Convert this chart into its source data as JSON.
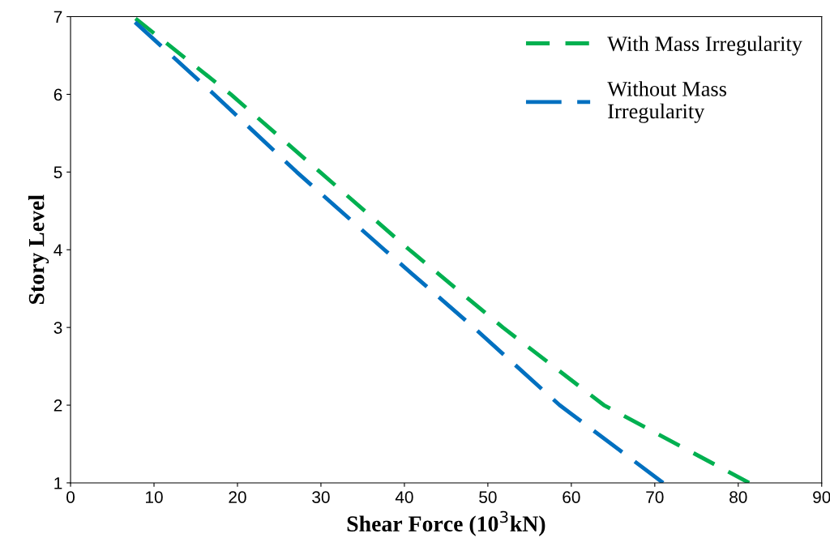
{
  "chart_data": {
    "type": "line",
    "xlabel": "Shear Force (10$^{3}$kN)",
    "ylabel": "Story Level",
    "series": [
      {
        "name": "With Mass Irregularity",
        "color": "#00b050",
        "line_style": "dashed",
        "x": [
          81.3,
          63.9,
          51.8,
          40.6,
          29.9,
          19.2,
          7.5
        ],
        "values": [
          1,
          2,
          3,
          4,
          5,
          6,
          7
        ]
      },
      {
        "name": "Without Mass\nIrregularity",
        "color": "#0070c0",
        "line_style": "dashed",
        "x": [
          71.0,
          58.6,
          48.3,
          37.6,
          27.1,
          17.2,
          7.0
        ],
        "values": [
          1,
          2,
          3,
          4,
          5,
          6,
          7
        ]
      }
    ],
    "xlim": [
      0,
      90
    ],
    "xticks": [
      0,
      10,
      20,
      30,
      40,
      50,
      60,
      70,
      80,
      90
    ],
    "ylim": [
      1,
      7
    ],
    "yticks": [
      1,
      2,
      3,
      4,
      5,
      6,
      7
    ],
    "grid": false,
    "legend": "top right",
    "marker": "none"
  }
}
